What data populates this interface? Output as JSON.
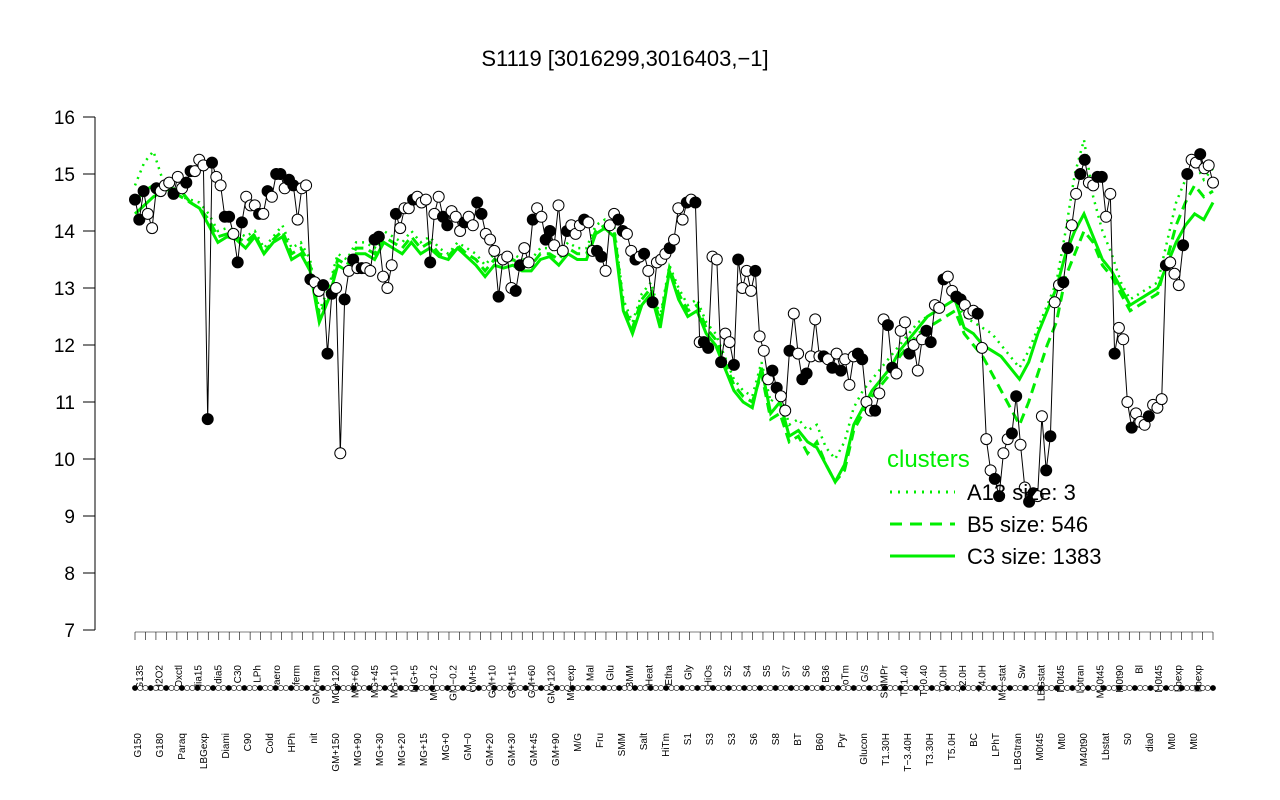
{
  "chart_data": {
    "type": "line",
    "title": "S1119 [3016299,3016403,−1]",
    "xlabel": "",
    "ylabel": "",
    "ylim": [
      7,
      16
    ],
    "yticks": [
      7,
      8,
      9,
      10,
      11,
      12,
      13,
      14,
      15,
      16
    ],
    "grid": false,
    "colors": {
      "profile": "#000000",
      "cluster": "#00ee00",
      "point_fill": "#ffffff",
      "point_dark": "#000000"
    },
    "x_labels_upper": [
      "G135",
      "H2O2",
      "Oxctl",
      "dia15",
      "dia5",
      "C30",
      "LPh",
      "aero",
      "ferm",
      "GM−tran",
      "MG+120",
      "MG+60",
      "MG+45",
      "MG+10",
      "MG+5",
      "MG−0.2",
      "GM−0.2",
      "GM+5",
      "GM+10",
      "GM+15",
      "GM+60",
      "GM+120",
      "M9−exp",
      "Mal",
      "Glu",
      "BMM",
      "Heat",
      "Etha",
      "Gly",
      "HiOs",
      "S2",
      "S4",
      "S5",
      "S7",
      "S6",
      "B36",
      "LoTm",
      "G/S",
      "SMMPr",
      "T−1.40",
      "T−0.40",
      "T0.0H",
      "T2.0H",
      "T4.0H",
      "M9−stat",
      "Sw",
      "LBGstat",
      "M0t45",
      "Lbtran",
      "M40t45",
      "M0t90",
      "Bl",
      "M0t45",
      "Lbexp",
      "Lbexp"
    ],
    "x_labels_lower": [
      "G150",
      "G180",
      "Paraq",
      "LBGexp",
      "Diami",
      "C90",
      "Cold",
      "HPh",
      "nit",
      "GM+150",
      "MG+90",
      "MG+30",
      "MG+20",
      "MG+15",
      "MG+0",
      "GM−0",
      "GM+20",
      "GM+30",
      "GM+45",
      "GM+90",
      "M/G",
      "Fru",
      "SMM",
      "Salt",
      "HiTm",
      "S1",
      "S3",
      "S3",
      "S6",
      "S8",
      "BT",
      "B60",
      "Pyr",
      "Glucon",
      "T1.30H",
      "T−3.40H",
      "T3.30H",
      "T5.0H",
      "BC",
      "LPhT",
      "LBGtran",
      "M0t45",
      "Mt0",
      "M40t90",
      "Lbstat",
      "S0",
      "dia0",
      "Mt0",
      "Mt0"
    ],
    "profile_values": [
      14.55,
      14.2,
      14.7,
      14.3,
      14.05,
      14.75,
      14.7,
      14.8,
      14.85,
      14.65,
      14.95,
      14.75,
      14.85,
      15.05,
      15.05,
      15.25,
      15.15,
      10.7,
      15.2,
      14.95,
      14.8,
      14.25,
      14.25,
      13.95,
      13.45,
      14.15,
      14.6,
      14.45,
      14.45,
      14.3,
      14.3,
      14.7,
      14.6,
      15.0,
      15.0,
      14.75,
      14.9,
      14.8,
      14.2,
      14.75,
      14.8,
      13.15,
      13.1,
      12.95,
      13.05,
      11.85,
      12.9,
      13.0,
      10.1,
      12.8,
      13.3,
      13.5,
      13.35,
      13.35,
      13.35,
      13.3,
      13.85,
      13.9,
      13.2,
      13.0,
      13.4,
      14.3,
      14.05,
      14.4,
      14.4,
      14.55,
      14.6,
      14.5,
      14.55,
      13.45,
      14.3,
      14.6,
      14.25,
      14.1,
      14.35,
      14.25,
      14.0,
      14.15,
      14.25,
      14.1,
      14.5,
      14.3,
      13.95,
      13.85,
      13.65,
      12.85,
      13.5,
      13.55,
      13.0,
      12.95,
      13.4,
      13.7,
      13.45,
      14.2,
      14.4,
      14.25,
      13.85,
      14.0,
      13.75,
      14.45,
      13.65,
      14.0,
      14.1,
      13.95,
      14.1,
      14.2,
      14.15,
      13.65,
      13.65,
      13.55,
      13.3,
      14.1,
      14.3,
      14.2,
      14.0,
      13.95,
      13.65,
      13.5,
      13.55,
      13.6,
      13.3,
      12.75,
      13.45,
      13.5,
      13.6,
      13.7,
      13.85,
      14.4,
      14.2,
      14.5,
      14.55,
      14.5,
      12.05,
      12.05,
      11.95,
      13.55,
      13.5,
      11.7,
      12.2,
      12.05,
      11.65,
      13.5,
      13.0,
      13.3,
      12.95,
      13.3,
      12.15,
      11.9,
      11.4,
      11.55,
      11.25,
      11.1,
      10.85,
      11.9,
      12.55,
      11.85,
      11.4,
      11.5,
      11.8,
      12.45,
      11.8,
      11.8,
      11.75,
      11.6,
      11.85,
      11.55,
      11.75,
      11.3,
      11.8,
      11.85,
      11.75,
      11.0,
      10.85,
      10.85,
      11.15,
      12.45,
      12.35,
      11.6,
      11.5,
      12.25,
      12.4,
      11.85,
      12.0,
      11.55,
      12.1,
      12.25,
      12.05,
      12.7,
      12.65,
      13.15,
      13.2,
      12.95,
      12.85,
      12.8,
      12.7,
      12.55,
      12.6,
      12.55,
      11.95,
      10.35,
      9.8,
      9.65,
      9.35,
      10.1,
      10.35,
      10.45,
      11.1,
      10.25,
      9.5,
      9.25,
      9.4,
      9.35,
      10.75,
      9.8,
      10.4,
      12.75,
      13.05,
      13.1,
      13.7,
      14.1,
      14.65,
      15.0,
      15.25,
      14.85,
      14.8,
      14.95,
      14.95,
      14.25,
      14.65,
      11.85,
      12.3,
      12.1,
      11.0,
      10.55,
      10.8,
      10.65,
      10.6,
      10.75,
      10.95,
      10.9,
      11.05,
      13.4,
      13.45,
      13.25,
      13.05,
      13.75,
      15.0,
      15.25,
      15.2,
      15.35,
      15.1,
      15.15,
      14.85
    ],
    "dark_points_pattern": [
      0,
      2,
      5,
      9,
      12,
      17,
      18,
      22,
      24,
      31,
      34,
      36,
      41,
      44,
      46,
      51,
      56,
      61,
      65,
      69,
      72,
      80,
      85,
      90,
      96,
      105,
      108,
      114,
      119,
      125,
      131,
      134,
      140,
      145,
      150,
      156,
      163,
      170,
      176,
      181,
      186,
      192,
      197,
      202,
      206,
      210,
      214,
      218,
      222,
      226,
      233,
      237,
      241,
      246,
      253,
      258,
      262
    ],
    "cluster_C3_values": [
      14.3,
      14.45,
      14.6,
      14.7,
      14.75,
      14.7,
      14.5,
      14.4,
      14.1,
      13.8,
      13.9,
      13.85,
      13.7,
      13.9,
      13.6,
      13.8,
      13.9,
      13.5,
      13.6,
      13.3,
      12.4,
      12.8,
      13.4,
      13.3,
      13.6,
      13.6,
      13.5,
      13.8,
      13.7,
      13.6,
      13.8,
      13.6,
      13.7,
      13.55,
      13.5,
      13.7,
      13.55,
      13.4,
      13.2,
      13.4,
      13.35,
      13.4,
      13.3,
      13.3,
      13.5,
      13.55,
      13.4,
      13.6,
      13.5,
      13.5,
      13.95,
      14.05,
      13.9,
      12.6,
      12.2,
      12.7,
      12.9,
      12.3,
      13.3,
      12.8,
      12.5,
      12.6,
      12.2,
      12.0,
      11.6,
      11.2,
      11.0,
      10.9,
      11.6,
      10.8,
      11.0,
      10.4,
      10.5,
      10.3,
      10.2,
      9.9,
      9.6,
      9.9,
      10.6,
      10.9,
      11.2,
      11.4,
      11.6,
      11.9,
      12.1,
      12.3,
      12.5,
      12.6,
      12.7,
      12.8,
      12.3,
      12.2,
      12.0,
      11.9,
      11.8,
      11.6,
      11.4,
      11.7,
      12.2,
      12.6,
      13.0,
      13.6,
      14.0,
      14.3,
      13.9,
      13.5,
      13.3,
      13.0,
      12.7,
      12.8,
      12.9,
      13.0,
      13.4,
      13.8,
      14.1,
      14.3,
      14.2,
      14.5
    ],
    "cluster_B5_values": [
      14.5,
      14.7,
      14.8,
      14.75,
      14.7,
      14.6,
      14.5,
      14.4,
      14.2,
      13.9,
      13.95,
      13.9,
      13.8,
      13.95,
      13.6,
      13.85,
      14.0,
      13.6,
      13.7,
      13.4,
      12.5,
      12.9,
      13.5,
      13.4,
      13.7,
      13.7,
      13.6,
      13.9,
      13.8,
      13.7,
      13.9,
      13.7,
      13.8,
      13.6,
      13.55,
      13.75,
      13.6,
      13.5,
      13.3,
      13.5,
      13.45,
      13.5,
      13.4,
      13.4,
      13.6,
      13.6,
      13.5,
      13.7,
      13.6,
      13.6,
      14.0,
      14.1,
      14.0,
      12.7,
      12.3,
      12.8,
      13.0,
      12.4,
      13.35,
      12.9,
      12.6,
      12.7,
      12.3,
      12.1,
      11.7,
      11.3,
      11.1,
      11.0,
      11.5,
      10.7,
      10.8,
      10.3,
      10.4,
      10.1,
      10.3,
      9.9,
      9.6,
      9.8,
      10.5,
      10.8,
      11.1,
      11.3,
      11.5,
      11.8,
      12.0,
      12.2,
      12.3,
      12.4,
      12.5,
      12.6,
      12.2,
      12.0,
      11.8,
      11.5,
      11.2,
      10.9,
      10.6,
      11.0,
      11.5,
      12.0,
      12.4,
      13.2,
      13.6,
      14.0,
      13.8,
      13.4,
      13.2,
      12.9,
      12.6,
      12.7,
      12.8,
      12.9,
      13.5,
      14.1,
      14.5,
      14.8,
      14.6,
      14.7
    ],
    "cluster_A13_values": [
      14.8,
      15.2,
      15.4,
      14.9,
      14.7,
      14.6,
      14.55,
      14.5,
      14.3,
      14.0,
      14.05,
      14.0,
      13.9,
      14.0,
      13.7,
      13.9,
      14.1,
      13.7,
      13.8,
      13.5,
      12.6,
      13.0,
      13.6,
      13.5,
      13.8,
      13.8,
      13.7,
      14.0,
      13.9,
      13.8,
      14.0,
      13.8,
      13.9,
      13.7,
      13.6,
      13.8,
      13.7,
      13.6,
      13.4,
      13.6,
      13.55,
      13.6,
      13.5,
      13.5,
      13.7,
      13.7,
      13.6,
      13.8,
      13.7,
      13.7,
      14.1,
      14.2,
      14.1,
      12.8,
      12.4,
      12.9,
      13.1,
      12.5,
      13.4,
      13.0,
      12.7,
      12.8,
      12.4,
      12.2,
      11.8,
      11.4,
      11.2,
      11.1,
      11.7,
      11.0,
      11.2,
      10.6,
      10.7,
      10.5,
      10.6,
      10.2,
      10.0,
      10.3,
      10.9,
      11.2,
      11.4,
      11.6,
      11.8,
      12.0,
      12.2,
      12.4,
      12.5,
      12.6,
      12.7,
      12.8,
      12.5,
      12.4,
      12.3,
      12.2,
      12.0,
      11.8,
      11.6,
      11.9,
      12.3,
      12.7,
      13.1,
      14.0,
      15.0,
      15.6,
      14.6,
      14.0,
      13.6,
      13.1,
      12.8,
      12.9,
      13.0,
      13.1,
      13.8,
      14.5,
      14.9,
      15.2,
      14.9,
      15.1
    ],
    "legend": {
      "title": "clusters",
      "position": "bottom-right",
      "entries": [
        {
          "label": "A13 size: 3",
          "style": "dotted"
        },
        {
          "label": "B5 size: 546",
          "style": "dashed"
        },
        {
          "label": "C3 size: 1383",
          "style": "solid"
        }
      ]
    }
  }
}
